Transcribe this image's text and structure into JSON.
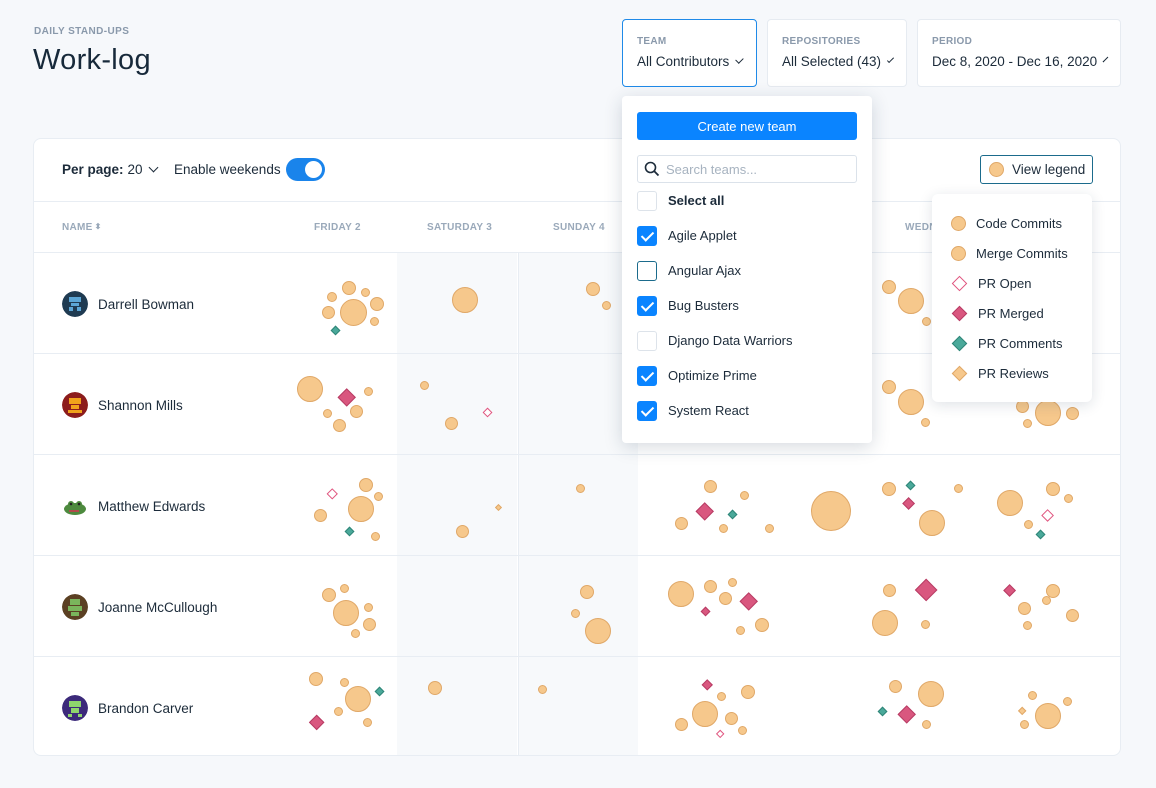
{
  "header": {
    "eyebrow": "DAILY STAND-UPS",
    "title": "Work-log"
  },
  "filters": [
    {
      "label": "TEAM",
      "value": "All Contributors"
    },
    {
      "label": "REPOSITORIES",
      "value": "All Selected (43)"
    },
    {
      "label": "PERIOD",
      "value": "Dec 8, 2020 - Dec 16, 2020"
    }
  ],
  "toolbar": {
    "per_page_label": "Per page:",
    "per_page_value": "20",
    "weekends_label": "Enable weekends",
    "weekends_enabled": true,
    "legend_button": "View legend"
  },
  "columns": {
    "name": "NAME",
    "days": [
      "FRIDAY 2",
      "SATURDAY 3",
      "SUNDAY 4",
      "WEDN"
    ]
  },
  "rows": [
    {
      "name": "Darrell Bowman"
    },
    {
      "name": "Shannon Mills"
    },
    {
      "name": "Matthew Edwards"
    },
    {
      "name": "Joanne McCullough"
    },
    {
      "name": "Brandon Carver"
    }
  ],
  "team_dropdown": {
    "create_button": "Create new team",
    "search_placeholder": "Search teams...",
    "select_all": "Select all",
    "options": [
      {
        "label": "Agile Applet",
        "checked": true
      },
      {
        "label": "Angular Ajax",
        "checked": false
      },
      {
        "label": "Bug Busters",
        "checked": true
      },
      {
        "label": "Django Data Warriors",
        "checked": false
      },
      {
        "label": "Optimize Prime",
        "checked": true
      },
      {
        "label": "System React",
        "checked": true
      }
    ]
  },
  "legend": {
    "items": [
      {
        "label": "Code Commits",
        "icon": "circle-icon"
      },
      {
        "label": "Merge Commits",
        "icon": "circle-icon"
      },
      {
        "label": "PR Open",
        "icon": "diamond-outline-icon"
      },
      {
        "label": "PR Merged",
        "icon": "diamond-icon"
      },
      {
        "label": "PR Comments",
        "icon": "diamond-icon"
      },
      {
        "label": "PR Reviews",
        "icon": "diamond-icon"
      }
    ]
  },
  "colors": {
    "accent": "#0a84ff",
    "commit": "#f6c88c",
    "pr_merged": "#d9577f",
    "pr_open": "#e0557f",
    "pr_comment": "#4aa99a"
  }
}
